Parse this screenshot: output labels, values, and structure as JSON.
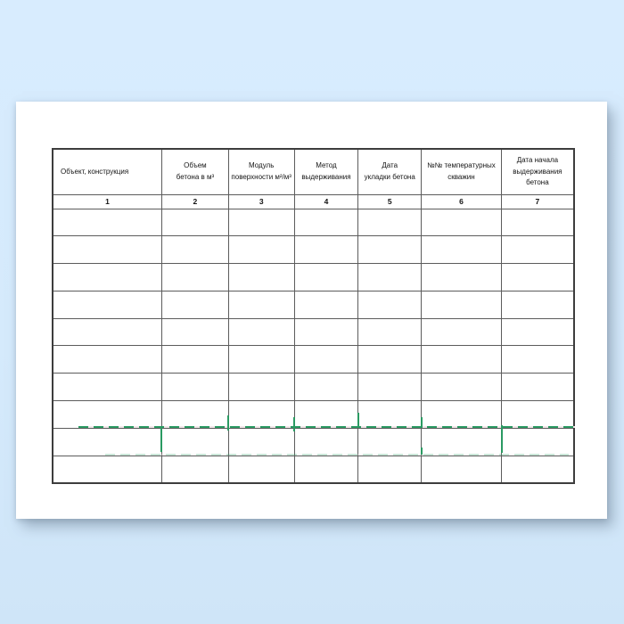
{
  "document": {
    "kind": "scanned-blank-table-form"
  },
  "table": {
    "columns": [
      {
        "num": "1",
        "label": "Объект, конструкция"
      },
      {
        "num": "2",
        "label": "Объем\nбетона в м³"
      },
      {
        "num": "3",
        "label": "Модуль\nповерхности  м²/м³"
      },
      {
        "num": "4",
        "label": "Метод\nвыдерживания"
      },
      {
        "num": "5",
        "label": "Дата\nукладки бетона"
      },
      {
        "num": "6",
        "label": "№№ температурных\nскважин"
      },
      {
        "num": "7",
        "label": "Дата начала\nвыдерживания бетона"
      }
    ],
    "empty_row_count": 10
  },
  "colors": {
    "background_blue": "#d5eafc",
    "paper": "#ffffff",
    "table_border": "#3d3d3d",
    "cell_border": "#5c5c5c",
    "artifact_green": "#2a9a62"
  }
}
